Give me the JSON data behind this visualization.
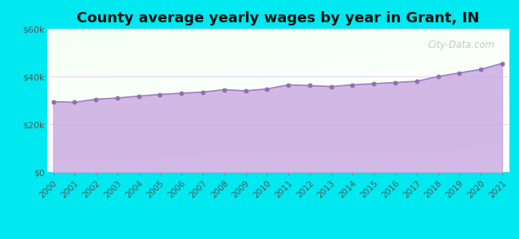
{
  "title": "County average yearly wages by year in Grant, IN",
  "years": [
    2000,
    2001,
    2002,
    2003,
    2004,
    2005,
    2006,
    2007,
    2008,
    2009,
    2010,
    2011,
    2012,
    2013,
    2014,
    2015,
    2016,
    2017,
    2018,
    2019,
    2020,
    2021
  ],
  "values": [
    29500,
    29200,
    30500,
    31000,
    31800,
    32500,
    33000,
    33500,
    34500,
    34000,
    34800,
    36500,
    36200,
    35800,
    36500,
    37000,
    37500,
    38000,
    40000,
    41500,
    43000,
    45500
  ],
  "ylim": [
    0,
    60000
  ],
  "yticks": [
    0,
    20000,
    40000,
    60000
  ],
  "ytick_labels": [
    "$0",
    "$20k",
    "$40k",
    "$60k"
  ],
  "line_color": "#a080c0",
  "fill_color_bottom": "#c8a8e0",
  "fill_color_top": "#d8c0ee",
  "marker_color": "#9070b0",
  "marker_size": 18,
  "bg_outer": "#00e8f0",
  "title_fontsize": 13,
  "tick_fontsize": 8,
  "watermark": "City-Data.com"
}
